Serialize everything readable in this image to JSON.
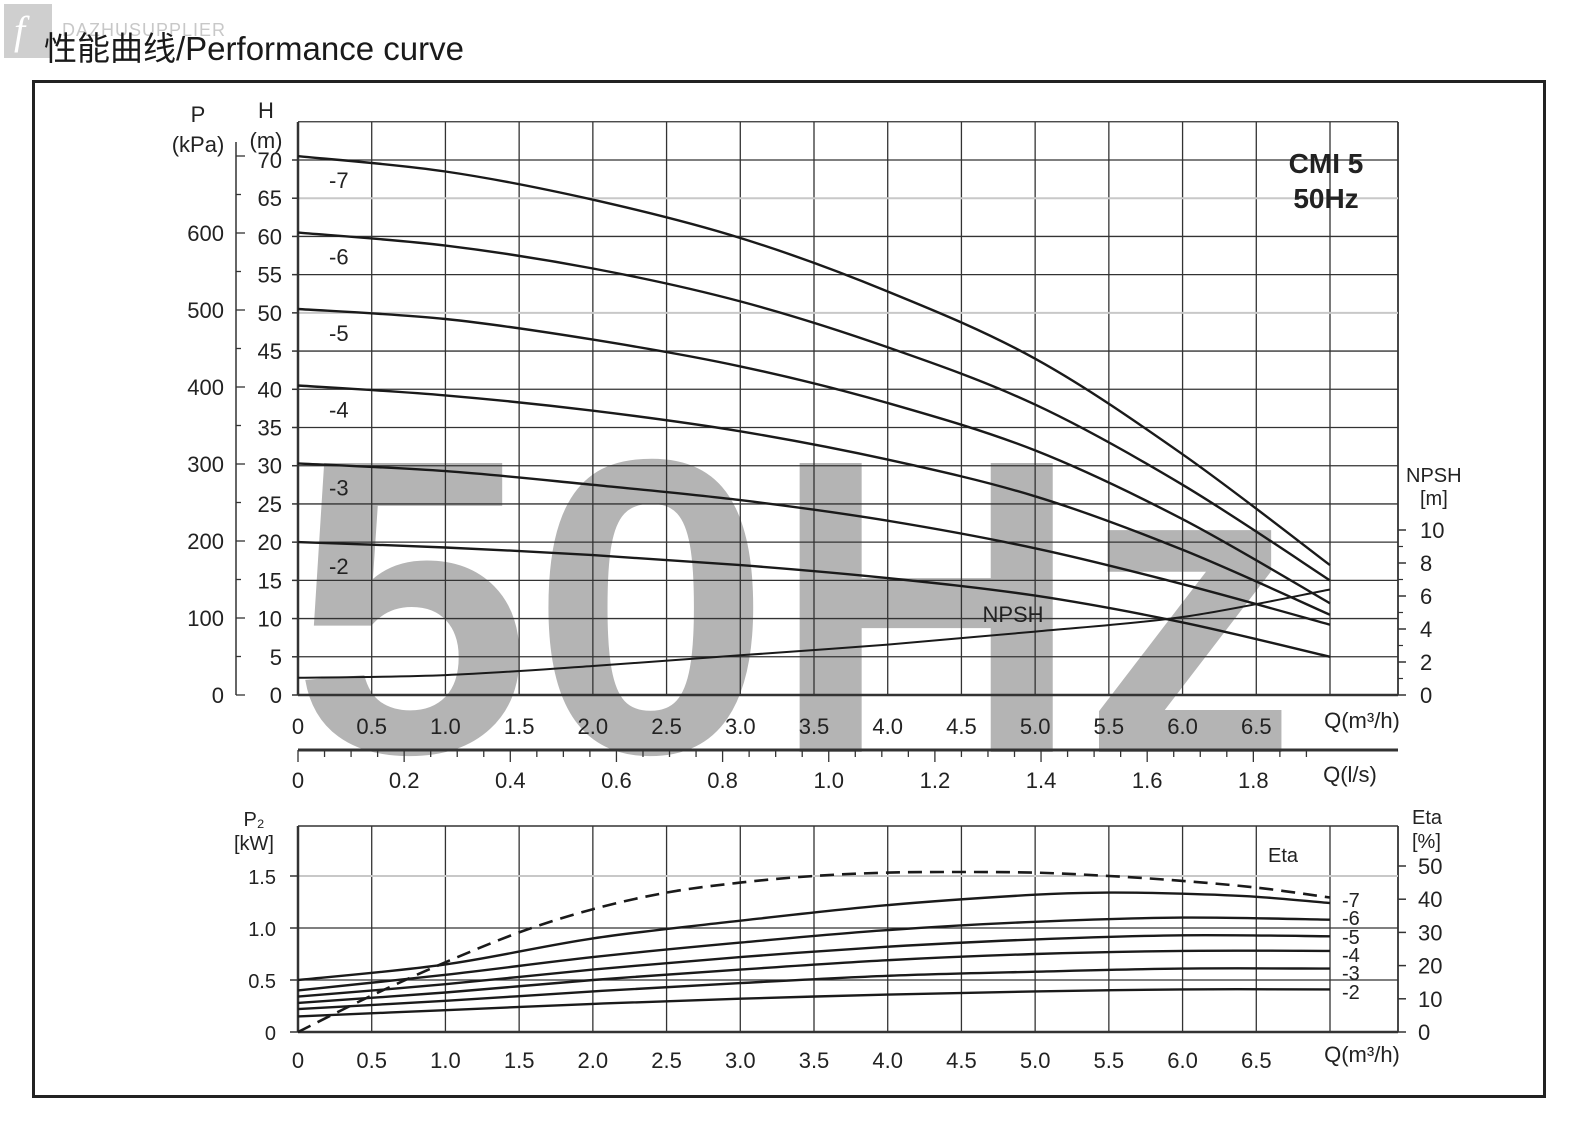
{
  "header": {
    "watermark_text": "DAZHUSUPPLIER",
    "title": "性能曲线/Performance curve"
  },
  "colors": {
    "curve": "#1a1a1a",
    "grid": "#333333",
    "watermark": "#b4b4b4",
    "grid_light": "#c8c8c8"
  },
  "chart_data": [
    {
      "type": "line",
      "id": "head",
      "model_label": [
        "CMI 5",
        "50Hz"
      ],
      "background_text": "50Hz",
      "x_label": "Q(m³/h)",
      "x_ticks": [
        "0",
        "0.5",
        "1.0",
        "1.5",
        "2.0",
        "2.5",
        "3.0",
        "3.5",
        "4.0",
        "4.5",
        "5.0",
        "5.5",
        "6.0",
        "6.5"
      ],
      "xlim": [
        0,
        7
      ],
      "secondary_x_label": "Q(l/s)",
      "secondary_x_ticks": [
        "0",
        "0.2",
        "0.4",
        "0.6",
        "0.8",
        "1.0",
        "1.2",
        "1.4",
        "1.6",
        "1.8"
      ],
      "y_label": [
        "H",
        "(m)"
      ],
      "y_ticks": [
        "0",
        "5",
        "10",
        "15",
        "20",
        "25",
        "30",
        "35",
        "40",
        "45",
        "50",
        "55",
        "60",
        "65",
        "70"
      ],
      "ylim": [
        0,
        75
      ],
      "pressure_label": [
        "P",
        "(kPa)"
      ],
      "pressure_ticks": [
        "0",
        "100",
        "200",
        "300",
        "400",
        "500",
        "600"
      ],
      "npsh_axis_label": [
        "NPSH",
        "[m]"
      ],
      "npsh_ticks": [
        "0",
        "2",
        "4",
        "6",
        "8",
        "10"
      ],
      "series": [
        {
          "name": "-7",
          "x": [
            0,
            1,
            2,
            3,
            4,
            5,
            6,
            7
          ],
          "y": [
            70.5,
            68.5,
            64.8,
            59.8,
            52.8,
            44,
            31.5,
            17
          ]
        },
        {
          "name": "-6",
          "x": [
            0,
            1,
            2,
            3,
            4,
            5,
            6,
            7
          ],
          "y": [
            60.5,
            58.8,
            55.8,
            51.5,
            45.5,
            38,
            27.5,
            15
          ]
        },
        {
          "name": "-5",
          "x": [
            0,
            1,
            2,
            3,
            4,
            5,
            6,
            7
          ],
          "y": [
            50.5,
            49.2,
            46.5,
            43,
            38.2,
            32,
            23,
            12
          ]
        },
        {
          "name": "-4",
          "x": [
            0,
            1,
            2,
            3,
            4,
            5,
            6,
            7
          ],
          "y": [
            40.5,
            39.2,
            37.2,
            34.5,
            30.8,
            26,
            19,
            10.5
          ]
        },
        {
          "name": "-3",
          "x": [
            0,
            1,
            2,
            3,
            4,
            5,
            6,
            7
          ],
          "y": [
            30.3,
            29.3,
            27.5,
            25.5,
            22.8,
            19.2,
            14.5,
            9.2
          ]
        },
        {
          "name": "-2",
          "x": [
            0,
            1,
            2,
            3,
            4,
            5,
            6,
            7
          ],
          "y": [
            20,
            19.3,
            18.3,
            17,
            15.3,
            13,
            9.5,
            5
          ]
        },
        {
          "name": "NPSH",
          "x": [
            0,
            1,
            2,
            3,
            4,
            5,
            6,
            7
          ],
          "npsh": [
            0.95,
            1.1,
            1.6,
            2.2,
            2.8,
            3.5,
            4.3,
            5.8
          ],
          "y": [
            2.25,
            2.6,
            3.8,
            5.2,
            6.6,
            8.3,
            10.2,
            13.8
          ]
        }
      ]
    },
    {
      "type": "line",
      "id": "power",
      "x_label": "Q(m³/h)",
      "x_ticks": [
        "0",
        "0.5",
        "1.0",
        "1.5",
        "2.0",
        "2.5",
        "3.0",
        "3.5",
        "4.0",
        "4.5",
        "5.0",
        "5.5",
        "6.0",
        "6.5"
      ],
      "xlim": [
        0,
        7
      ],
      "y_label": [
        "P₂",
        "[kW]"
      ],
      "y_ticks": [
        "0",
        "0.5",
        "1.0",
        "1.5"
      ],
      "ylim": [
        0,
        1.7
      ],
      "eta_label": [
        "Eta",
        "[%]"
      ],
      "eta_ticks": [
        "0",
        "10",
        "20",
        "30",
        "40",
        "50"
      ],
      "eta_curve_label": "Eta",
      "series": [
        {
          "name": "-7",
          "x": [
            0,
            1,
            2,
            3,
            4,
            5,
            5.5,
            6,
            6.5,
            7
          ],
          "y": [
            0.5,
            0.65,
            0.9,
            1.07,
            1.22,
            1.32,
            1.34,
            1.33,
            1.3,
            1.24
          ]
        },
        {
          "name": "-6",
          "x": [
            0,
            1,
            2,
            3,
            4,
            5,
            6,
            7
          ],
          "y": [
            0.4,
            0.55,
            0.72,
            0.86,
            0.98,
            1.06,
            1.1,
            1.08
          ]
        },
        {
          "name": "-5",
          "x": [
            0,
            1,
            2,
            3,
            4,
            5,
            6,
            7
          ],
          "y": [
            0.34,
            0.46,
            0.6,
            0.72,
            0.82,
            0.89,
            0.93,
            0.92
          ]
        },
        {
          "name": "-4",
          "x": [
            0,
            1,
            2,
            3,
            4,
            5,
            6,
            7
          ],
          "y": [
            0.28,
            0.38,
            0.5,
            0.6,
            0.69,
            0.75,
            0.78,
            0.78
          ]
        },
        {
          "name": "-3",
          "x": [
            0,
            1,
            2,
            3,
            4,
            5,
            6,
            7
          ],
          "y": [
            0.22,
            0.3,
            0.39,
            0.47,
            0.54,
            0.58,
            0.61,
            0.61
          ]
        },
        {
          "name": "-2",
          "x": [
            0,
            1,
            2,
            3,
            4,
            5,
            6,
            7
          ],
          "y": [
            0.15,
            0.21,
            0.27,
            0.32,
            0.36,
            0.39,
            0.41,
            0.41
          ]
        },
        {
          "name": "Eta",
          "x": [
            0,
            0.5,
            1,
            1.5,
            2,
            2.5,
            3,
            3.5,
            4,
            4.5,
            5,
            5.5,
            6,
            6.5,
            7
          ],
          "eta": [
            0,
            11,
            21,
            30,
            37,
            42,
            45,
            47,
            48,
            48.2,
            48,
            47,
            45.5,
            43.5,
            40.5
          ]
        }
      ]
    }
  ]
}
